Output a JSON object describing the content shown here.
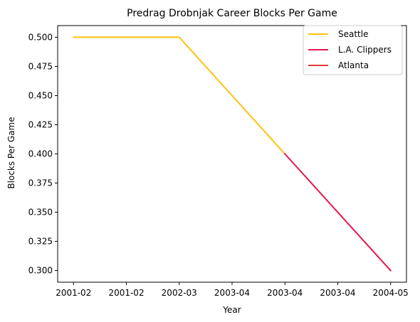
{
  "chart_data": {
    "type": "line",
    "title": "Predrag Drobnjak Career Blocks Per Game",
    "xlabel": "Year",
    "ylabel": "Blocks Per Game",
    "x_tick_labels": [
      "2001-02",
      "2001-02",
      "2002-03",
      "2003-04",
      "2003-04",
      "2003-04",
      "2004-05"
    ],
    "x_tick_positions": [
      0,
      0.5,
      1,
      1.5,
      2,
      2.5,
      3
    ],
    "ylim": [
      0.29,
      0.51
    ],
    "y_ticks": [
      0.3,
      0.325,
      0.35,
      0.375,
      0.4,
      0.425,
      0.45,
      0.475,
      0.5
    ],
    "y_tick_labels": [
      "0.300",
      "0.325",
      "0.350",
      "0.375",
      "0.400",
      "0.425",
      "0.450",
      "0.475",
      "0.500"
    ],
    "grid": false,
    "legend_position": "top-right",
    "series": [
      {
        "name": "Seattle",
        "color": "#FFC20E",
        "x": [
          0,
          1,
          2
        ],
        "y": [
          0.5,
          0.5,
          0.4
        ]
      },
      {
        "name": "L.A. Clippers",
        "color": "#E2184F",
        "x": [
          2,
          3
        ],
        "y": [
          0.4,
          0.3
        ]
      },
      {
        "name": "Atlanta",
        "color": "#E03A3E",
        "x": [],
        "y": []
      }
    ]
  }
}
